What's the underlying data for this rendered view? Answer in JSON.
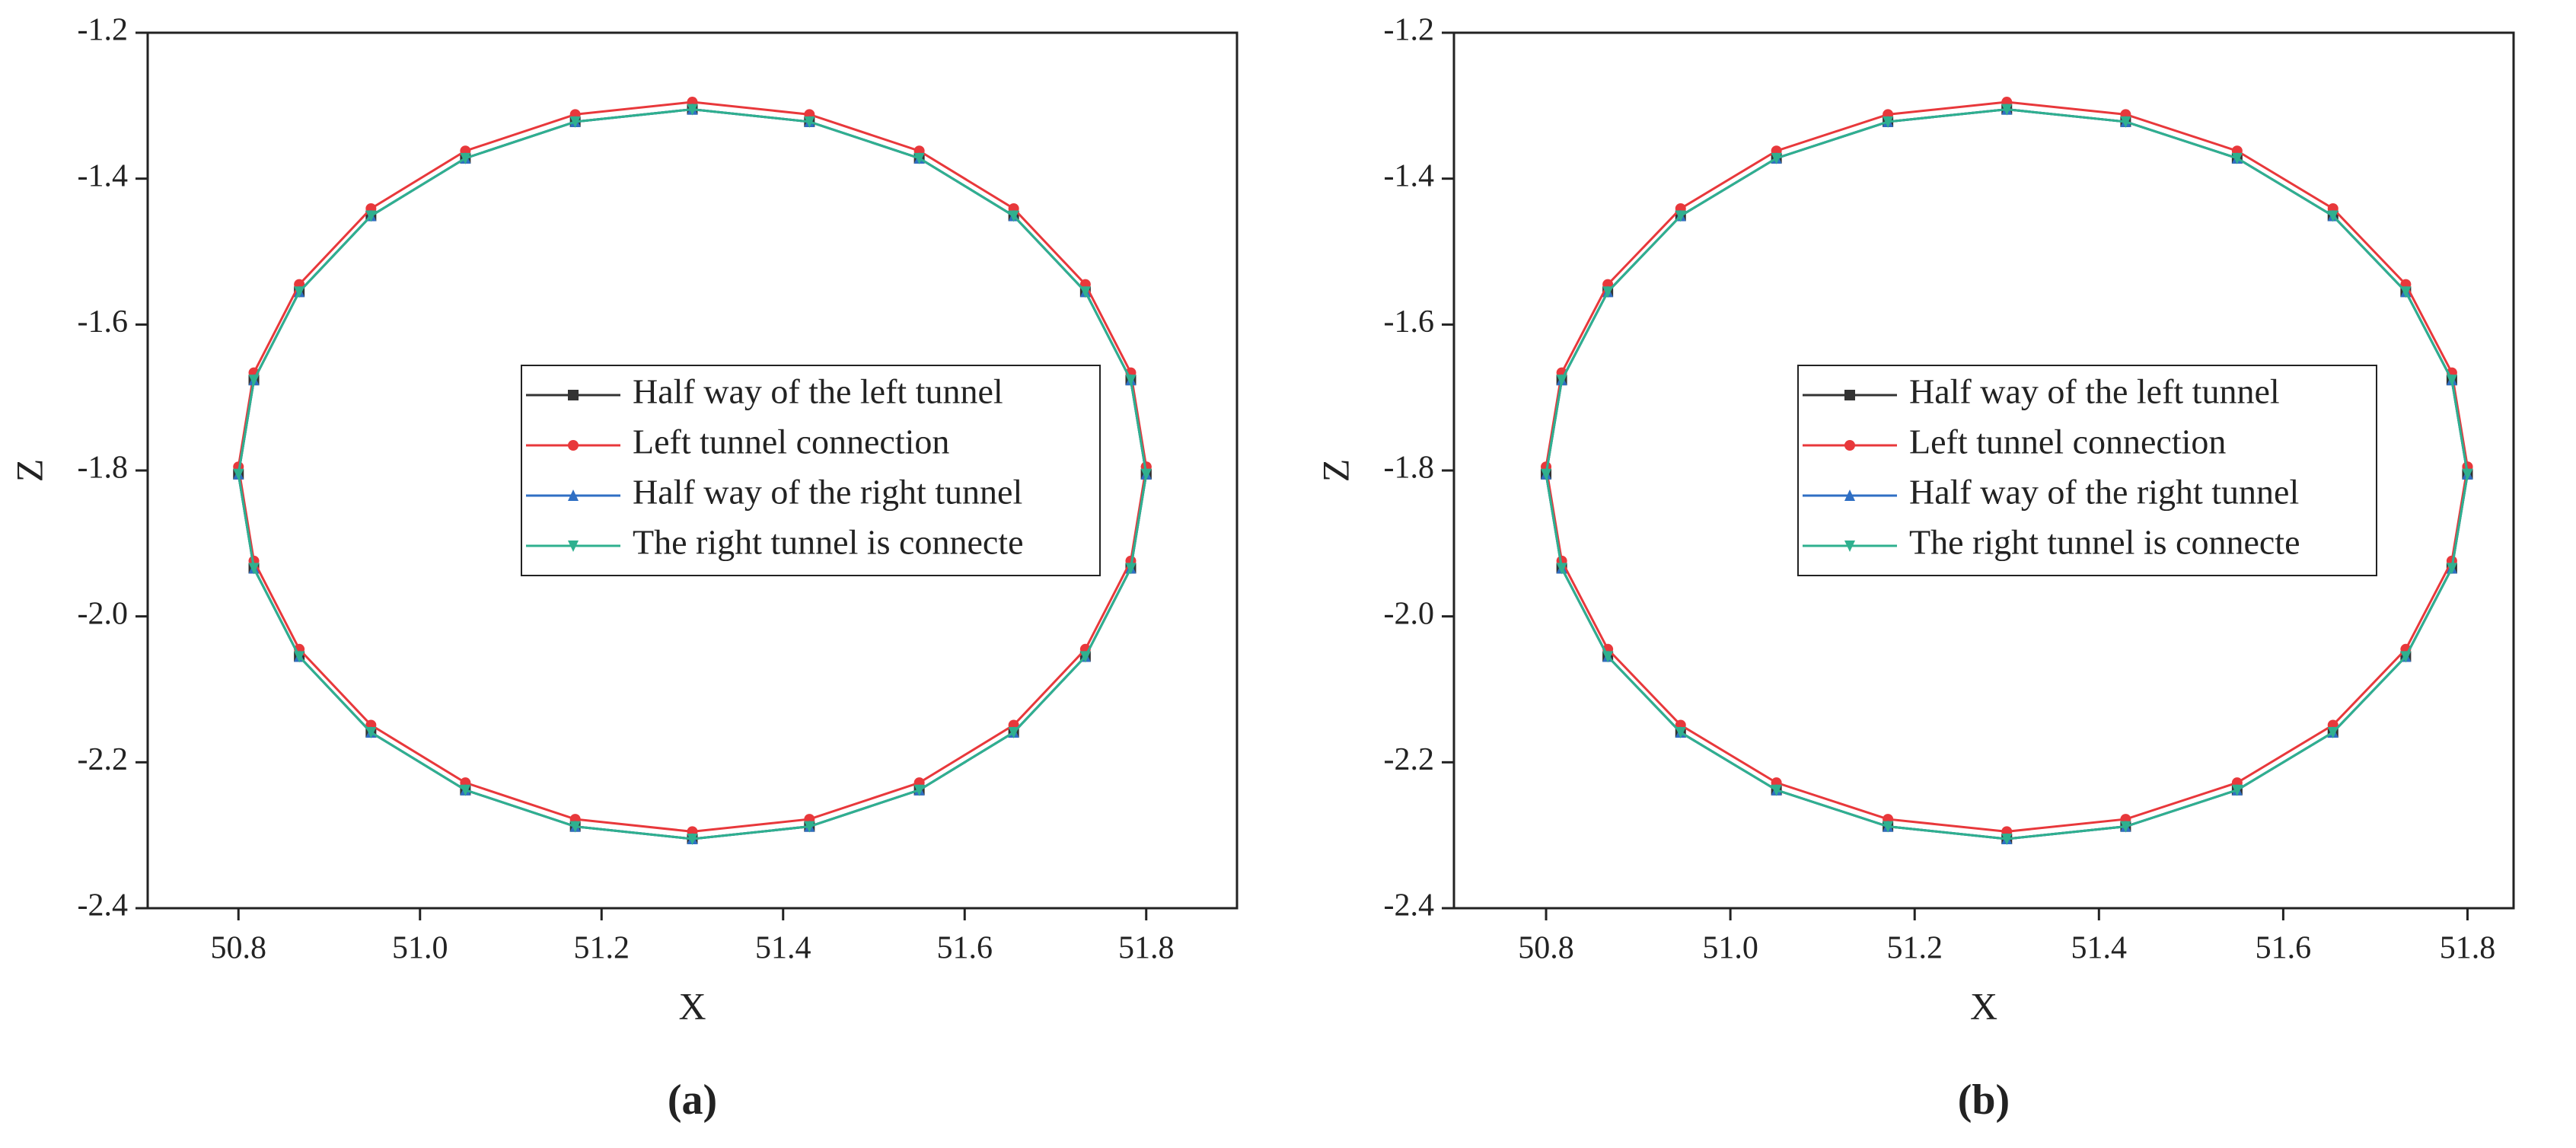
{
  "chart_data": [
    {
      "type": "line",
      "caption": "(a)",
      "xlabel": "X",
      "ylabel": "Z",
      "legend_loc": "center right",
      "xlim": [
        50.7,
        51.9
      ],
      "ylim": [
        -2.4,
        -1.2
      ],
      "xticks": [
        50.8,
        {
          "value": 51,
          "label": "51.0"
        },
        51.2,
        51.4,
        51.6,
        51.8
      ],
      "yticks": [
        -1.2,
        -1.4,
        -1.6,
        -1.8,
        {
          "value": -2,
          "label": "-2.0"
        },
        -2.2,
        -2.4
      ],
      "x": [
        51.8,
        51.783,
        51.733,
        51.654,
        51.55,
        51.429,
        51.3,
        51.171,
        51.05,
        50.946,
        50.867,
        50.817,
        50.8,
        50.817,
        50.867,
        50.946,
        51.05,
        51.171,
        51.3,
        51.429,
        51.55,
        51.654,
        51.733,
        51.783,
        51.8
      ],
      "series": [
        {
          "name": "Half way of the left tunnel",
          "color": "#333333",
          "marker": "square",
          "values": [
            -1.805,
            -1.676,
            -1.555,
            -1.451,
            -1.372,
            -1.322,
            -1.305,
            -1.322,
            -1.372,
            -1.451,
            -1.555,
            -1.676,
            -1.805,
            -1.934,
            -2.055,
            -2.159,
            -2.238,
            -2.288,
            -2.305,
            -2.288,
            -2.238,
            -2.159,
            -2.055,
            -1.934,
            -1.805
          ]
        },
        {
          "name": "Left tunnel connection",
          "color": "#e8383b",
          "marker": "circle",
          "values": [
            -1.795,
            -1.666,
            -1.545,
            -1.441,
            -1.362,
            -1.312,
            -1.295,
            -1.312,
            -1.362,
            -1.441,
            -1.545,
            -1.666,
            -1.795,
            -1.924,
            -2.045,
            -2.149,
            -2.228,
            -2.278,
            -2.295,
            -2.278,
            -2.228,
            -2.149,
            -2.045,
            -1.924,
            -1.795
          ]
        },
        {
          "name": "Half way of the right tunnel",
          "color": "#2f6fc4",
          "marker": "triangle-up",
          "values": [
            -1.805,
            -1.676,
            -1.555,
            -1.451,
            -1.372,
            -1.322,
            -1.305,
            -1.322,
            -1.372,
            -1.451,
            -1.555,
            -1.676,
            -1.805,
            -1.934,
            -2.055,
            -2.159,
            -2.238,
            -2.288,
            -2.305,
            -2.288,
            -2.238,
            -2.159,
            -2.055,
            -1.934,
            -1.805
          ]
        },
        {
          "name": "The right tunnel is connecte",
          "color": "#2fb08f",
          "marker": "triangle-down",
          "values": [
            -1.805,
            -1.676,
            -1.555,
            -1.451,
            -1.372,
            -1.322,
            -1.305,
            -1.322,
            -1.372,
            -1.451,
            -1.555,
            -1.676,
            -1.805,
            -1.934,
            -2.055,
            -2.159,
            -2.238,
            -2.288,
            -2.305,
            -2.288,
            -2.238,
            -2.159,
            -2.055,
            -1.934,
            -1.805
          ]
        }
      ]
    },
    {
      "type": "line",
      "caption": "(b)",
      "xlabel": "X",
      "ylabel": "Z",
      "legend_loc": "center right",
      "xlim": [
        50.7,
        51.85
      ],
      "ylim": [
        -2.4,
        -1.2
      ],
      "xticks": [
        50.8,
        {
          "value": 51,
          "label": "51.0"
        },
        51.2,
        51.4,
        51.6,
        51.8
      ],
      "yticks": [
        -1.2,
        -1.4,
        -1.6,
        -1.8,
        {
          "value": -2,
          "label": "-2.0"
        },
        -2.2,
        -2.4
      ],
      "x": [
        51.8,
        51.783,
        51.733,
        51.654,
        51.55,
        51.429,
        51.3,
        51.171,
        51.05,
        50.946,
        50.867,
        50.817,
        50.8,
        50.817,
        50.867,
        50.946,
        51.05,
        51.171,
        51.3,
        51.429,
        51.55,
        51.654,
        51.733,
        51.783,
        51.8
      ],
      "series": [
        {
          "name": "Half way of the left tunnel",
          "color": "#333333",
          "marker": "square",
          "values": [
            -1.805,
            -1.676,
            -1.555,
            -1.451,
            -1.372,
            -1.322,
            -1.305,
            -1.322,
            -1.372,
            -1.451,
            -1.555,
            -1.676,
            -1.805,
            -1.934,
            -2.055,
            -2.159,
            -2.238,
            -2.288,
            -2.305,
            -2.288,
            -2.238,
            -2.159,
            -2.055,
            -1.934,
            -1.805
          ]
        },
        {
          "name": "Left tunnel connection",
          "color": "#e8383b",
          "marker": "circle",
          "values": [
            -1.795,
            -1.666,
            -1.545,
            -1.441,
            -1.362,
            -1.312,
            -1.295,
            -1.312,
            -1.362,
            -1.441,
            -1.545,
            -1.666,
            -1.795,
            -1.924,
            -2.045,
            -2.149,
            -2.228,
            -2.278,
            -2.295,
            -2.278,
            -2.228,
            -2.149,
            -2.045,
            -1.924,
            -1.795
          ]
        },
        {
          "name": "Half way of the right tunnel",
          "color": "#2f6fc4",
          "marker": "triangle-up",
          "values": [
            -1.805,
            -1.676,
            -1.555,
            -1.451,
            -1.372,
            -1.322,
            -1.305,
            -1.322,
            -1.372,
            -1.451,
            -1.555,
            -1.676,
            -1.805,
            -1.934,
            -2.055,
            -2.159,
            -2.238,
            -2.288,
            -2.305,
            -2.288,
            -2.238,
            -2.159,
            -2.055,
            -1.934,
            -1.805
          ]
        },
        {
          "name": "The right tunnel is connecte",
          "color": "#2fb08f",
          "marker": "triangle-down",
          "values": [
            -1.805,
            -1.676,
            -1.555,
            -1.451,
            -1.372,
            -1.322,
            -1.305,
            -1.322,
            -1.372,
            -1.451,
            -1.555,
            -1.676,
            -1.805,
            -1.934,
            -2.055,
            -2.159,
            -2.238,
            -2.288,
            -2.305,
            -2.288,
            -2.238,
            -2.159,
            -2.055,
            -1.934,
            -1.805
          ]
        }
      ]
    }
  ]
}
